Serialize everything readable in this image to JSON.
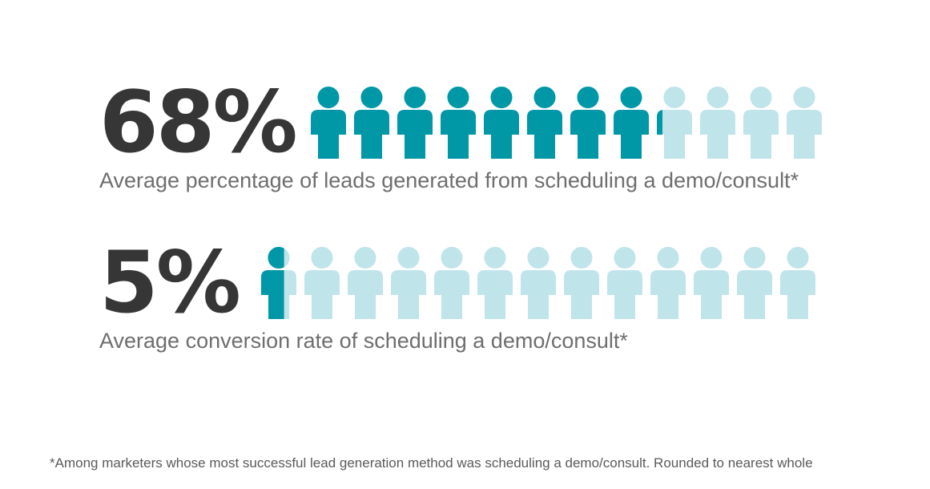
{
  "chart_data": [
    {
      "type": "pictograph",
      "value_label": "68%",
      "value": 68,
      "caption": "Average percentage of leads generated from scheduling a demo/consult*",
      "icon": "person-icon",
      "icon_count": 12,
      "filled_icons": 8.16,
      "filled_color": "#0097a7",
      "empty_color": "#bfe4ea"
    },
    {
      "type": "pictograph",
      "value_label": "5%",
      "value": 5,
      "caption": "Average conversion rate of scheduling a demo/consult*",
      "icon": "person-icon",
      "icon_count": 13,
      "filled_icons": 0.65,
      "filled_color": "#0097a7",
      "empty_color": "#bfe4ea"
    }
  ],
  "footnote": "*Among marketers whose most successful lead generation method was scheduling a demo/consult. Rounded to nearest whole"
}
